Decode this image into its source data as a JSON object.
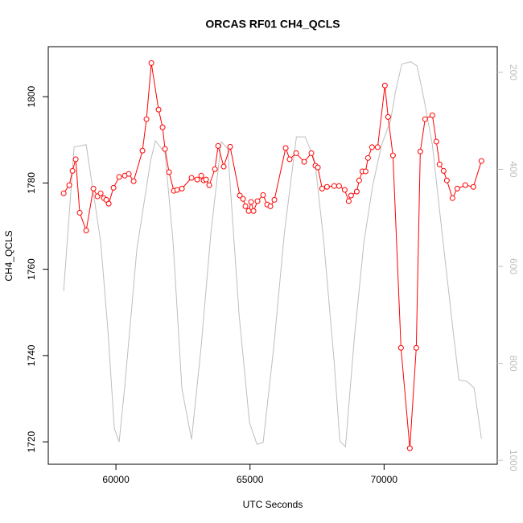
{
  "chart_data": {
    "type": "line",
    "title": "ORCAS RF01 CH4_QCLS",
    "x_label": "UTC Seconds",
    "y_label": "CH4_QCLS",
    "xlim": [
      57477,
      74220
    ],
    "xticks": [
      60000,
      65000,
      70000
    ],
    "ylim": [
      1714.8,
      1811.6
    ],
    "yticks": [
      1720,
      1740,
      1760,
      1780,
      1800
    ],
    "y2lim": [
      1008,
      147
    ],
    "y2ticks": [
      200,
      400,
      600,
      800,
      1000
    ],
    "series": [
      {
        "color": "#bebebe",
        "axis": "y2",
        "markers": false,
        "x": [
          58050,
          58440,
          58890,
          59430,
          59700,
          59940,
          60120,
          60330,
          60780,
          61290,
          61470,
          61830,
          62130,
          62460,
          62820,
          63180,
          63540,
          63930,
          64170,
          64590,
          64980,
          65260,
          65490,
          65890,
          66280,
          66730,
          67060,
          67420,
          67750,
          68140,
          68350,
          68560,
          68890,
          69250,
          69580,
          69910,
          70240,
          70420,
          70660,
          70990,
          71230,
          71470,
          71800,
          72130,
          72580,
          72790,
          73090,
          73360,
          73630
        ],
        "values": [
          651,
          354,
          349,
          549,
          731,
          934,
          962,
          847,
          565,
          383,
          341,
          366,
          549,
          852,
          957,
          764,
          532,
          343,
          358,
          698,
          922,
          967,
          963,
          764,
          532,
          333,
          333,
          383,
          549,
          798,
          960,
          972,
          748,
          549,
          432,
          349,
          300,
          241,
          183,
          178,
          187,
          250,
          349,
          515,
          736,
          834,
          837,
          851,
          955
        ]
      },
      {
        "color": "#ff0000",
        "markers": true,
        "x": [
          58050,
          58260,
          58380,
          58500,
          58650,
          58890,
          59160,
          59310,
          59430,
          59550,
          59640,
          59730,
          59910,
          60120,
          60330,
          60480,
          60660,
          60990,
          61140,
          61320,
          61590,
          61740,
          61830,
          61980,
          62160,
          62280,
          62460,
          62820,
          63030,
          63180,
          63270,
          63360,
          63480,
          63690,
          63810,
          64020,
          64260,
          64620,
          64740,
          64830,
          64950,
          65040,
          65130,
          65280,
          65490,
          65640,
          65760,
          65910,
          66330,
          66480,
          66720,
          67020,
          67290,
          67440,
          67530,
          67690,
          67870,
          68140,
          68320,
          68530,
          68680,
          68770,
          68980,
          69070,
          69190,
          69310,
          69400,
          69550,
          69760,
          70030,
          70150,
          70330,
          70630,
          70960,
          71200,
          71350,
          71530,
          71800,
          71950,
          72070,
          72220,
          72340,
          72550,
          72730,
          73030,
          73330,
          73630
        ],
        "values": [
          1777.6,
          1779.5,
          1782.8,
          1785.5,
          1773.1,
          1769.0,
          1778.7,
          1776.9,
          1777.6,
          1776.5,
          1776.1,
          1775.2,
          1778.9,
          1781.4,
          1781.7,
          1782.1,
          1780.4,
          1787.5,
          1794.8,
          1807.8,
          1797.0,
          1792.9,
          1787.9,
          1782.5,
          1778.2,
          1778.4,
          1778.7,
          1781.2,
          1780.8,
          1781.7,
          1780.6,
          1780.8,
          1779.5,
          1783.2,
          1788.6,
          1783.8,
          1788.4,
          1777.1,
          1776.3,
          1774.6,
          1773.5,
          1775.6,
          1773.5,
          1775.8,
          1777.2,
          1775.0,
          1774.6,
          1776.1,
          1788.1,
          1785.5,
          1786.9,
          1784.9,
          1786.9,
          1784.0,
          1783.6,
          1778.7,
          1779.1,
          1779.3,
          1779.3,
          1778.4,
          1775.8,
          1777.1,
          1778.0,
          1780.6,
          1782.7,
          1782.7,
          1785.8,
          1788.3,
          1788.3,
          1802.6,
          1795.3,
          1786.4,
          1741.8,
          1718.5,
          1741.8,
          1787.3,
          1794.8,
          1795.7,
          1789.6,
          1784.3,
          1782.8,
          1780.6,
          1776.5,
          1778.7,
          1779.5,
          1779.1,
          1785.1
        ]
      }
    ]
  }
}
